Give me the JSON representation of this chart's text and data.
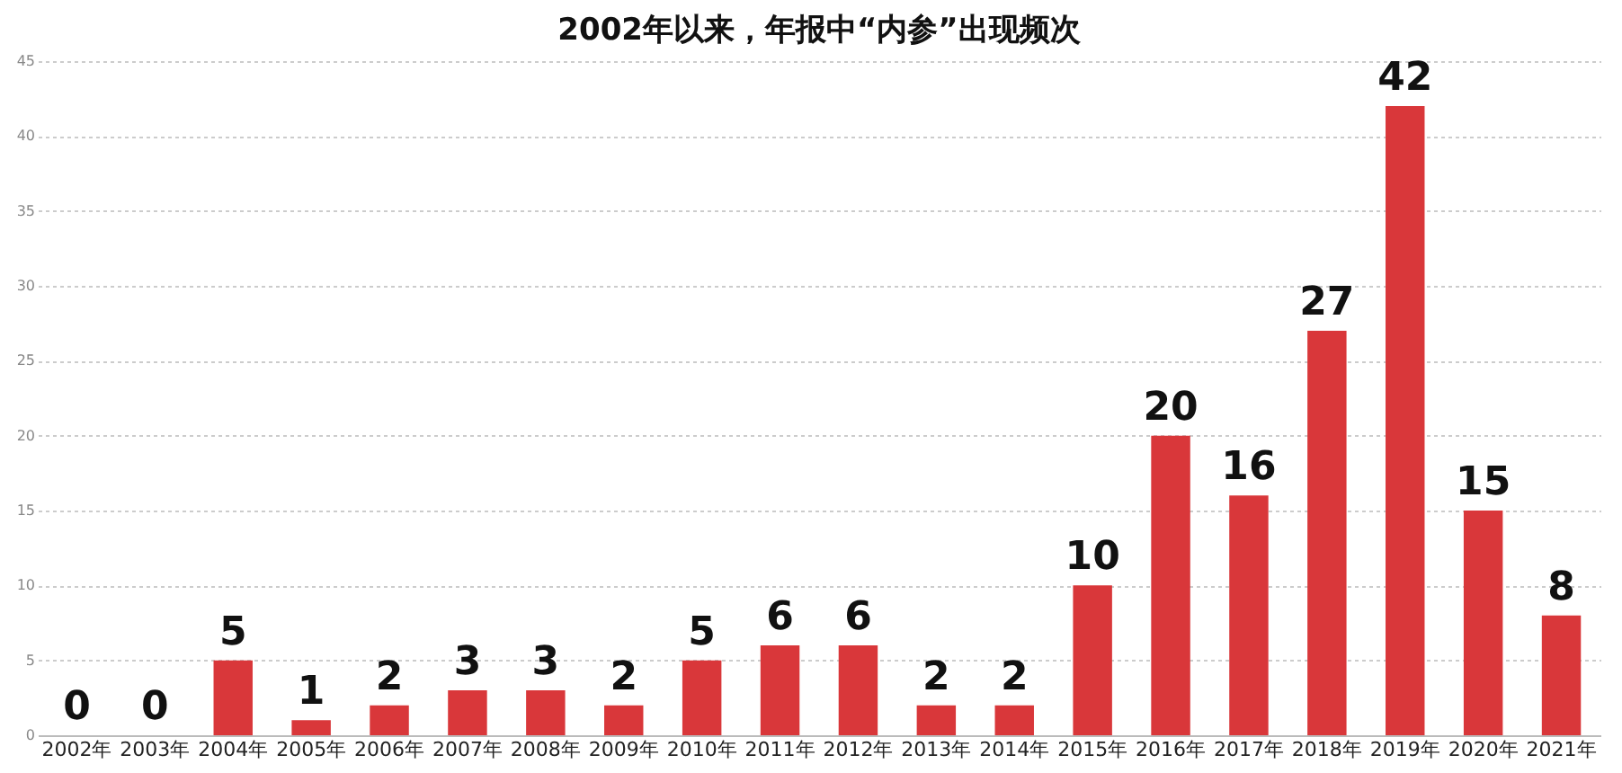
{
  "chart_data": {
    "type": "bar",
    "title": "2002年以来，年报中“内参”出现频次",
    "categories": [
      "2002年",
      "2003年",
      "2004年",
      "2005年",
      "2006年",
      "2007年",
      "2008年",
      "2009年",
      "2010年",
      "2011年",
      "2012年",
      "2013年",
      "2014年",
      "2015年",
      "2016年",
      "2017年",
      "2018年",
      "2019年",
      "2020年",
      "2021年"
    ],
    "values": [
      0,
      0,
      5,
      1,
      2,
      3,
      3,
      2,
      5,
      6,
      6,
      2,
      2,
      10,
      20,
      16,
      27,
      42,
      15,
      8
    ],
    "color": "#d9373a",
    "ylim": [
      0,
      45
    ],
    "yticks": [
      0,
      5,
      10,
      15,
      20,
      25,
      30,
      35,
      40,
      45
    ],
    "grid": "y",
    "data_labels": true
  }
}
